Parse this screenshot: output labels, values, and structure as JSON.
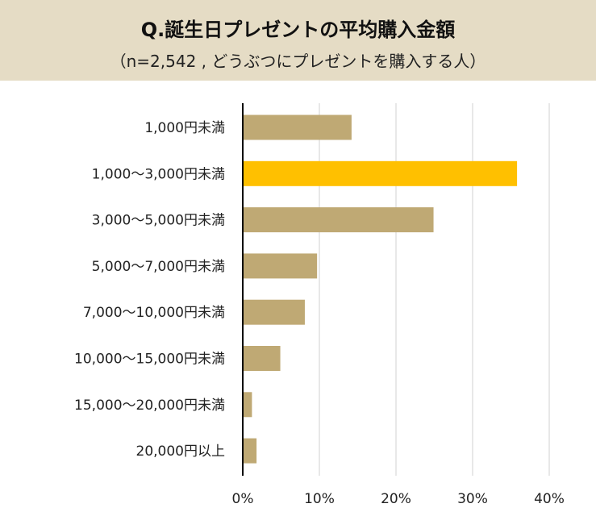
{
  "header": {
    "title": "Q.誕生日プレゼントの平均購入金額",
    "subtitle": "（n=2,542 , どうぶつにプレゼントを購入する人）"
  },
  "colors": {
    "header_bg": "#e5dcc5",
    "bar": "#bfa974",
    "highlight_bar": "#ffc000",
    "grid": "#d0d0d0",
    "axis": "#000000"
  },
  "chart_data": {
    "type": "bar",
    "orientation": "horizontal",
    "title": "Q.誕生日プレゼントの平均購入金額",
    "subtitle": "（n=2,542 , どうぶつにプレゼントを購入する人）",
    "categories": [
      "1,000円未満",
      "1,000～3,000円未満",
      "3,000～5,000円未満",
      "5,000～7,000円未満",
      "7,000～10,000円未満",
      "10,000～15,000円未満",
      "15,000～20,000円未満",
      "20,000円以上"
    ],
    "values": [
      14.2,
      35.8,
      24.9,
      9.7,
      8.1,
      4.9,
      1.2,
      1.8
    ],
    "highlight_index": 1,
    "xlim": [
      0,
      40
    ],
    "xticks": [
      "0%",
      "10%",
      "20%",
      "30%",
      "40%"
    ],
    "grid": true,
    "legend": "none"
  }
}
